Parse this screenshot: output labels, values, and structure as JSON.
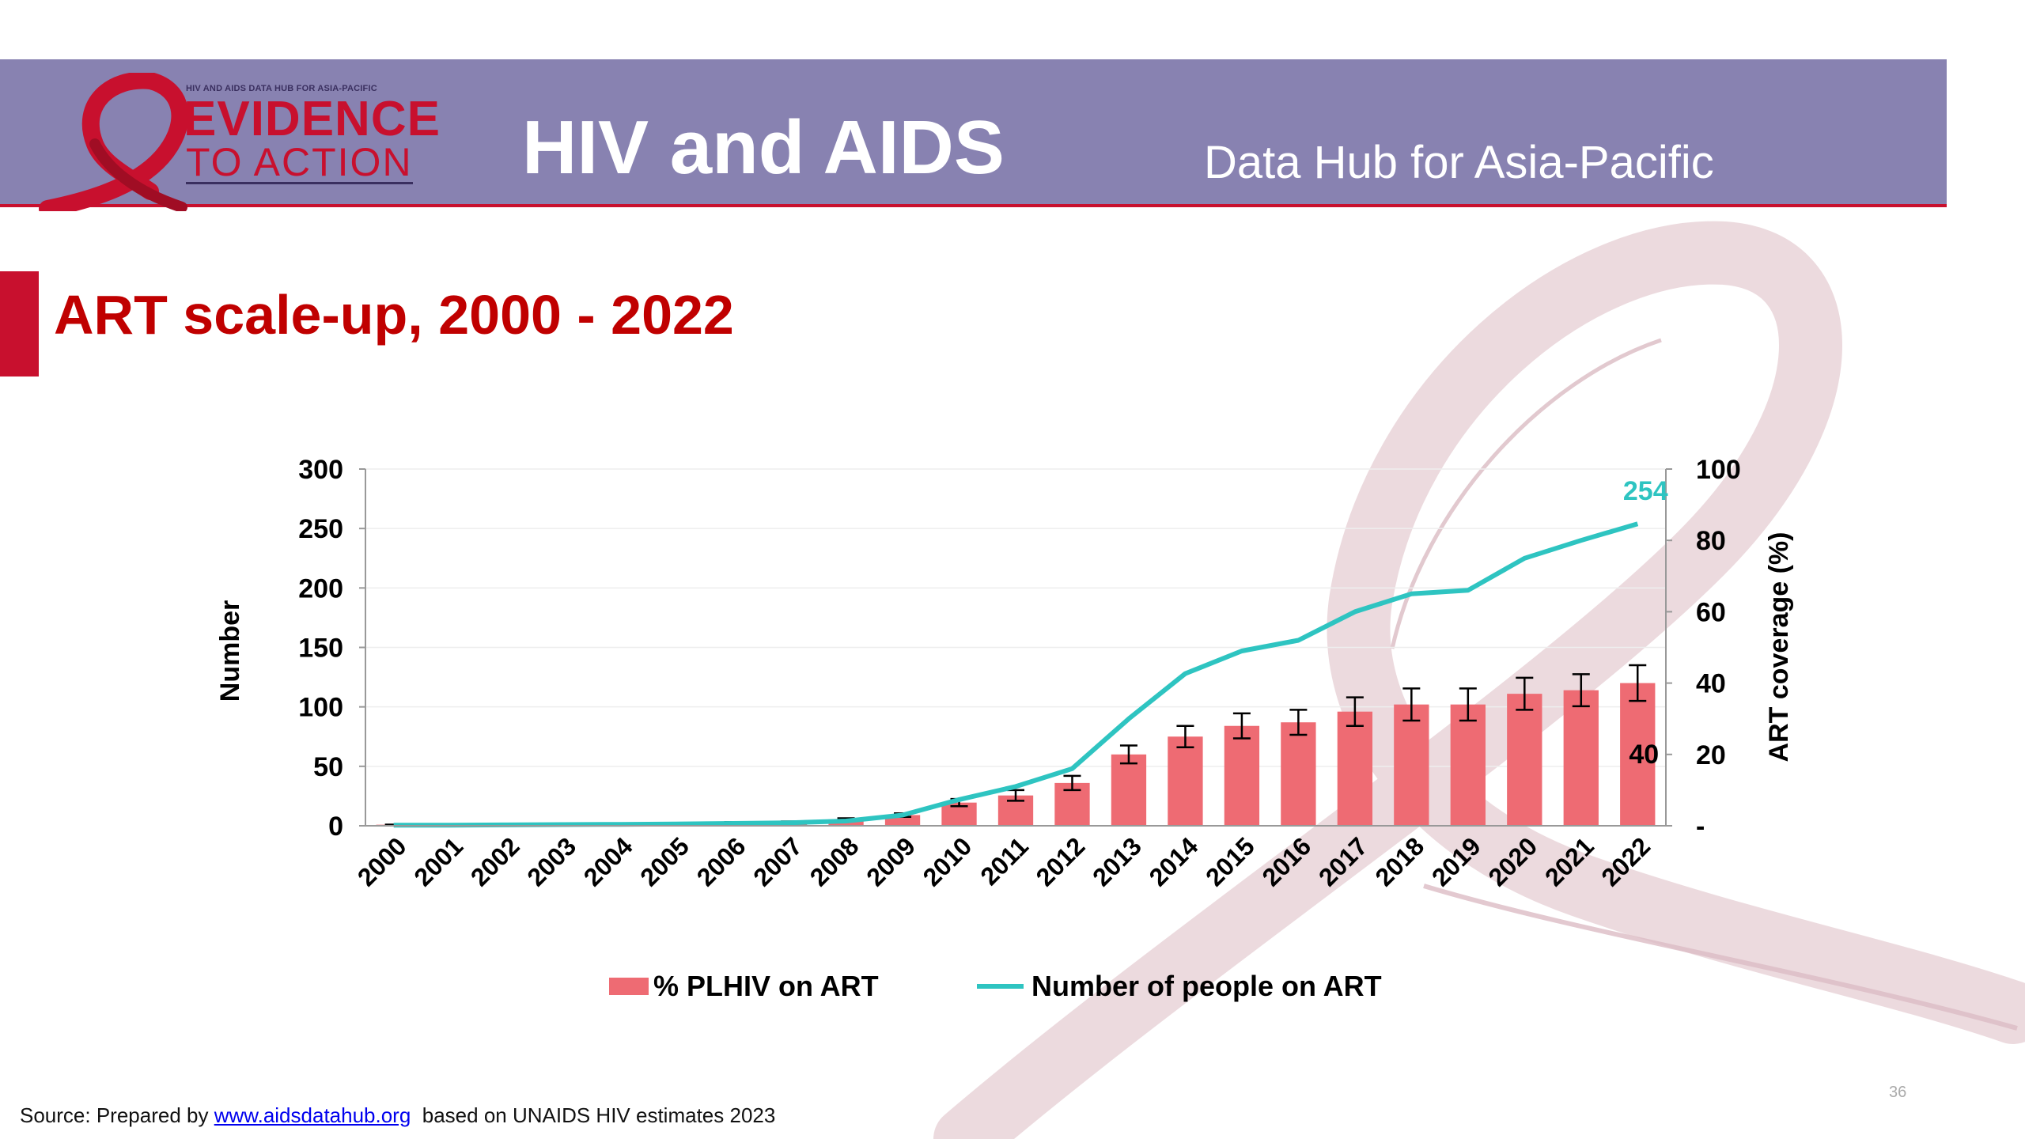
{
  "header": {
    "logo_small": "HIV AND AIDS DATA HUB FOR ASIA-PACIFIC",
    "logo_line1": "EVIDENCE",
    "logo_line2": "TO ACTION",
    "title": "HIV and AIDS",
    "subtitle": "Data Hub for Asia-Pacific"
  },
  "slide_title": "ART scale-up, 2000 - 2022",
  "chart_data": {
    "type": "bar",
    "years": [
      "2000",
      "2001",
      "2002",
      "2003",
      "2004",
      "2005",
      "2006",
      "2007",
      "2008",
      "2009",
      "2010",
      "2011",
      "2012",
      "2013",
      "2014",
      "2015",
      "2016",
      "2017",
      "2018",
      "2019",
      "2020",
      "2021",
      "2022"
    ],
    "series": [
      {
        "name": "% PLHIV on ART",
        "type": "bar",
        "axis": "right",
        "color": "#ee6b73",
        "values": [
          0.3,
          0.3,
          0.4,
          0.6,
          0.7,
          0.8,
          1.0,
          1.2,
          1.8,
          3,
          6.5,
          8.5,
          12,
          20,
          25,
          28,
          29,
          32,
          34,
          34,
          37,
          38,
          40
        ],
        "error_low": [
          0,
          0,
          0,
          0,
          0,
          0,
          0,
          0,
          0.3,
          0.5,
          1,
          1.5,
          2,
          2.5,
          3,
          3.5,
          3.5,
          4,
          4.5,
          4.5,
          4.5,
          4.5,
          5
        ],
        "error_high": [
          0,
          0,
          0,
          0,
          0,
          0,
          0,
          0,
          0.3,
          0.5,
          1,
          1.5,
          2,
          2.5,
          3,
          3.5,
          3.5,
          4,
          4.5,
          4.5,
          4.5,
          4.5,
          5
        ]
      },
      {
        "name": "Number of people on ART",
        "type": "line",
        "axis": "left",
        "color": "#2ec4c1",
        "values": [
          0.5,
          0.5,
          0.7,
          1,
          1.2,
          1.5,
          2,
          2.5,
          4,
          9,
          22,
          33,
          48,
          90,
          128,
          147,
          156,
          180,
          195,
          198,
          225,
          240,
          254
        ]
      }
    ],
    "y_left": {
      "label": "Number",
      "min": 0,
      "max": 300,
      "ticks": [
        "0",
        "50",
        "100",
        "150",
        "200",
        "250",
        "300"
      ]
    },
    "y_right": {
      "label": "ART coverage (%)",
      "min": 0,
      "max": 100,
      "ticks": [
        "-",
        "20",
        "40",
        "60",
        "80",
        "100"
      ]
    },
    "annotations": {
      "line_last": "254",
      "bar_last": "40"
    },
    "legend": {
      "position": "bottom",
      "items": [
        "% PLHIV on ART",
        "Number of people on ART"
      ]
    }
  },
  "source": {
    "prefix": "Source: Prepared by ",
    "link": "www.aidsdatahub.org",
    "suffix": "  based on UNAIDS HIV estimates 2023"
  },
  "page_number": "36"
}
